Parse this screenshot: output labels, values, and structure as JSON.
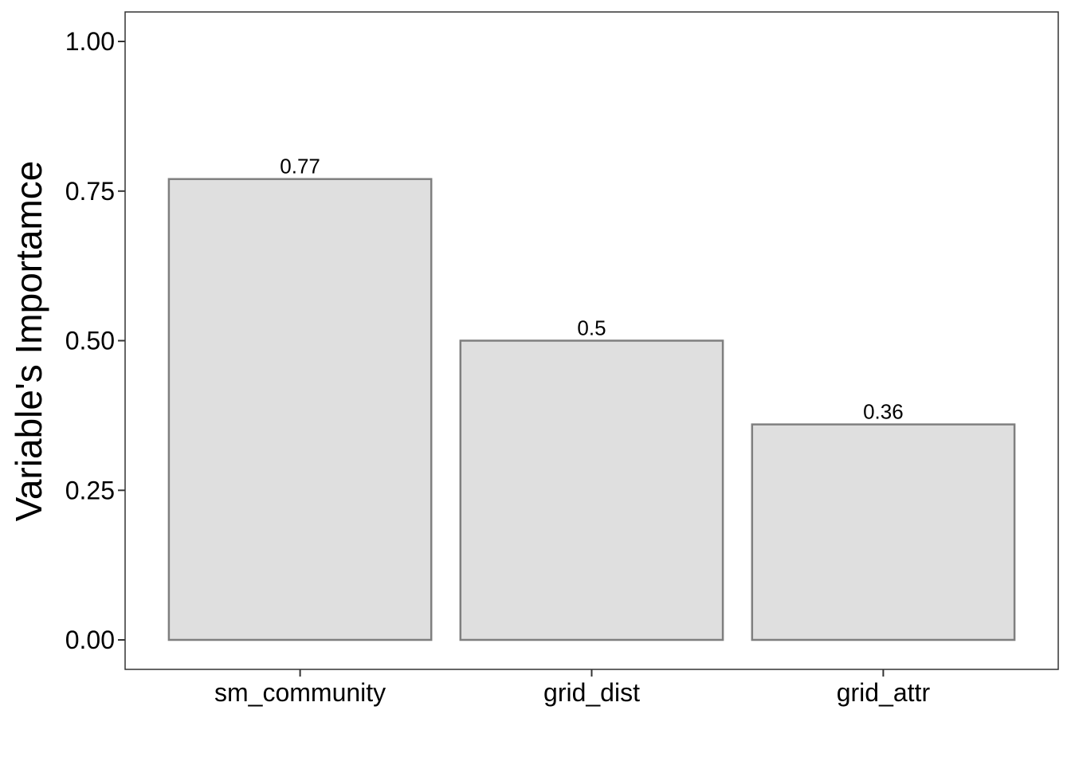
{
  "chart_data": {
    "type": "bar",
    "categories": [
      "sm_community",
      "grid_dist",
      "grid_attr"
    ],
    "values": [
      0.77,
      0.5,
      0.36
    ],
    "data_labels": [
      "0.77",
      "0.5",
      "0.36"
    ],
    "title": "",
    "xlabel": "",
    "ylabel": "Variable's Importamce",
    "ylim": [
      0,
      1
    ],
    "yticks": [
      0,
      0.25,
      0.5,
      0.75,
      1
    ],
    "ytick_labels": [
      "0.00",
      "0.25",
      "0.50",
      "0.75",
      "1.00"
    ],
    "grid": false,
    "legend": "none",
    "colors": {
      "bar_fill": "#dfdfdf",
      "bar_stroke": "#7f7f7f",
      "panel_border": "#333333"
    }
  }
}
